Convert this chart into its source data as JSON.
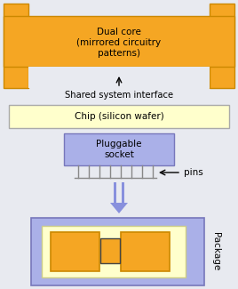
{
  "bg_color": "#e8eaf0",
  "orange": "#f5a623",
  "orange_dark": "#cc8800",
  "yellow_light": "#ffffcc",
  "yellow_border": "#cccc88",
  "purple_light": "#aab0e8",
  "purple_border": "#7777bb",
  "purple_arrow": "#8890dd",
  "gray_line": "#888888",
  "white": "#ffffff",
  "dual_core_text": "Dual core\n(mirrored circuitry\npatterns)",
  "shared_text": "Shared system interface",
  "chip_text": "Chip (silicon wafer)",
  "socket_text": "Pluggable\nsocket",
  "pins_text": "pins",
  "package_text": "Package",
  "fig_width": 2.68,
  "fig_height": 3.25,
  "dpi": 100
}
